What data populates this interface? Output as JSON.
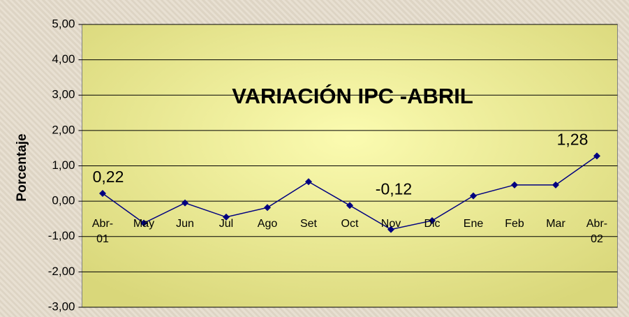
{
  "chart_data": {
    "type": "line",
    "title": "VARIACIÓN IPC -ABRIL",
    "y_label": "Porcentaje",
    "categories": [
      "Abr-01",
      "May",
      "Jun",
      "Jul",
      "Ago",
      "Set",
      "Oct",
      "Nov",
      "Dic",
      "Ene",
      "Feb",
      "Mar",
      "Abr-02"
    ],
    "series": [
      {
        "name": "IPC",
        "color": "#000080",
        "values": [
          0.22,
          -0.62,
          -0.05,
          -0.45,
          -0.18,
          0.55,
          -0.12,
          -0.8,
          -0.55,
          0.15,
          0.46,
          0.46,
          1.28
        ],
        "value_labels": [
          "0,22",
          null,
          null,
          null,
          null,
          null,
          "-0,12",
          null,
          null,
          null,
          null,
          null,
          "1,28"
        ]
      }
    ],
    "ylim": [
      -3,
      5
    ],
    "yticks": [
      {
        "value": -3,
        "label": "-3,00"
      },
      {
        "value": -2,
        "label": "-2,00"
      },
      {
        "value": -1,
        "label": "-1,00"
      },
      {
        "value": 0,
        "label": "0,00"
      },
      {
        "value": 1,
        "label": "1,00"
      },
      {
        "value": 2,
        "label": "2,00"
      },
      {
        "value": 3,
        "label": "3,00"
      },
      {
        "value": 4,
        "label": "4,00"
      },
      {
        "value": 5,
        "label": "5,00"
      }
    ],
    "grid": true
  }
}
